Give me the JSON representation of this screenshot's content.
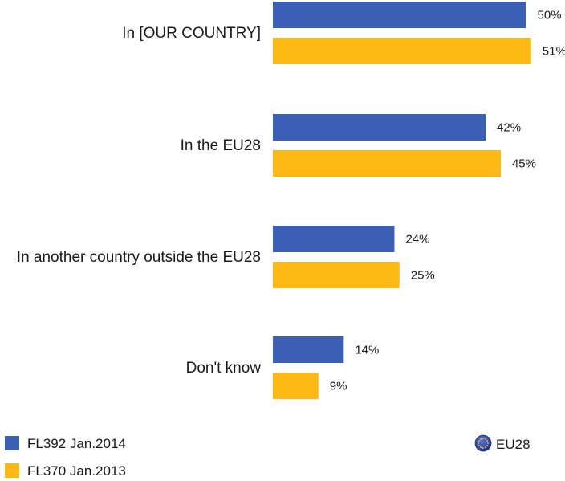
{
  "chart_data": {
    "type": "bar",
    "orientation": "horizontal",
    "categories": [
      "In [OUR COUNTRY]",
      "In the EU28",
      "In another country outside the EU28",
      "Don't know"
    ],
    "series": [
      {
        "name": "FL392 Jan.2014",
        "values": [
          50,
          42,
          24,
          14
        ],
        "labels": [
          "50%",
          "42%",
          "24%",
          "14%"
        ],
        "color": "#3a5fb5"
      },
      {
        "name": "FL370 Jan.2013",
        "values": [
          51,
          45,
          25,
          9
        ],
        "labels": [
          "51%",
          "45%",
          "25%",
          "9%"
        ],
        "color": "#fdb813"
      }
    ],
    "value_unit": "%",
    "grid": false,
    "legend_position": "bottom-left"
  },
  "region": {
    "label": "EU28",
    "icon": "eu-flag-icon"
  }
}
